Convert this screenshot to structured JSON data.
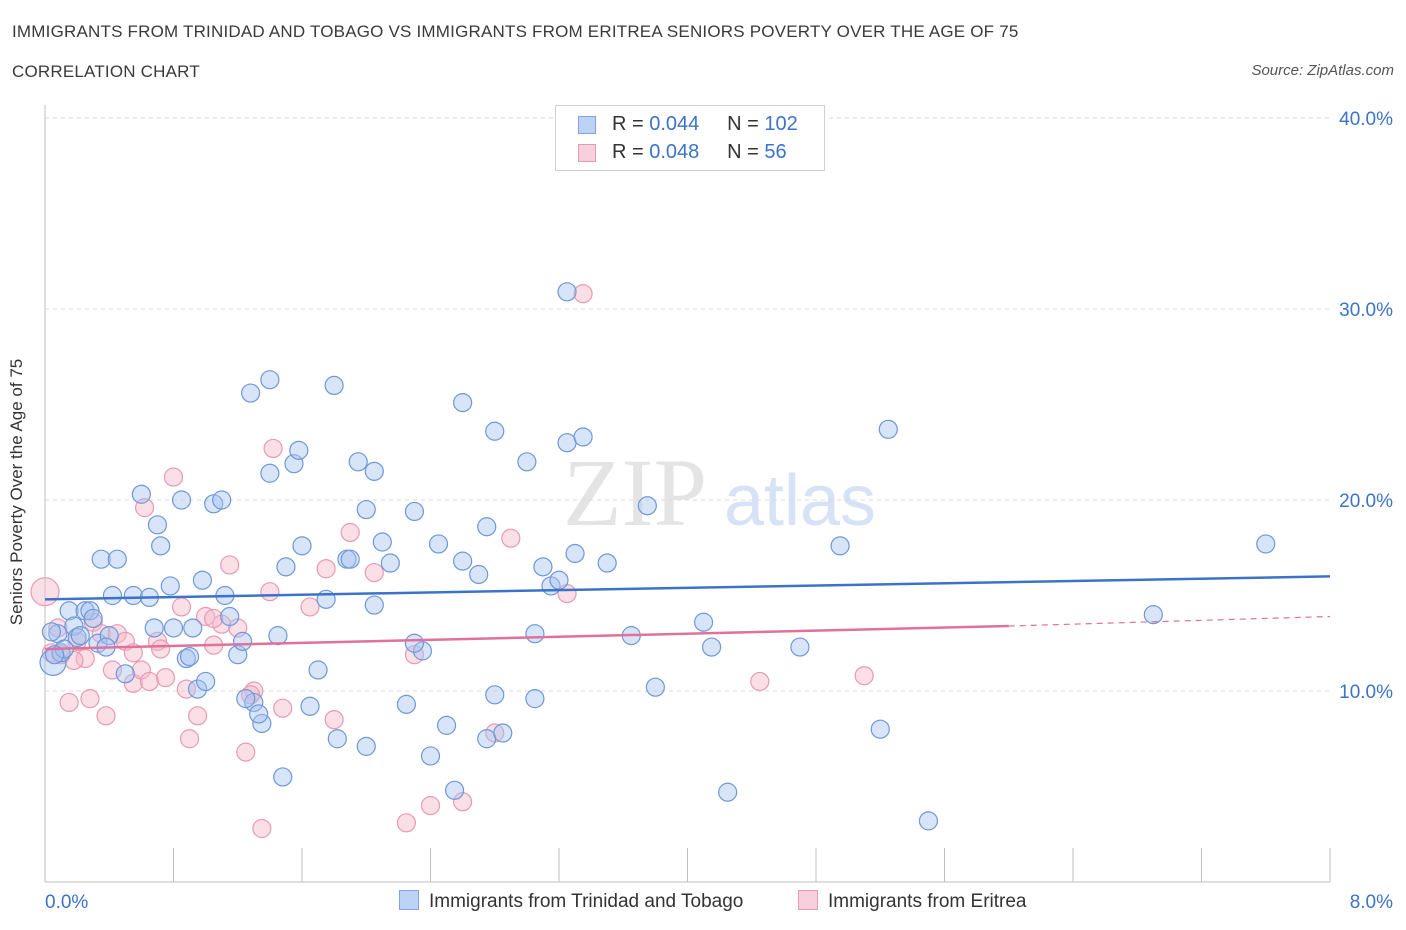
{
  "header": {
    "title": "IMMIGRANTS FROM TRINIDAD AND TOBAGO VS IMMIGRANTS FROM ERITREA SENIORS POVERTY OVER THE AGE OF 75",
    "subtitle": "CORRELATION CHART",
    "source": "Source: ZipAtlas.com"
  },
  "legend": {
    "series1": {
      "r_label": "R = ",
      "r_value": "0.044",
      "n_label": "N = ",
      "n_value": "102"
    },
    "series2": {
      "r_label": "R = ",
      "r_value": "0.048",
      "n_label": "N = ",
      "n_value": "56"
    }
  },
  "watermark": {
    "zip": "ZIP",
    "atlas": "atlas"
  },
  "colors": {
    "blue": "#3b73c9",
    "blue_fill": "#a8c4ef",
    "pink": "#e0719a",
    "pink_fill": "#f4b7c9",
    "grid": "#d9d9d9",
    "tick_label": "#3b73c9"
  },
  "chart_data": {
    "type": "scatter",
    "title": "IMMIGRANTS FROM TRINIDAD AND TOBAGO VS IMMIGRANTS FROM ERITREA SENIORS POVERTY OVER THE AGE OF 75",
    "xlabel": "",
    "ylabel": "Seniors Poverty Over the Age of 75",
    "xlim": [
      0,
      8
    ],
    "ylim": [
      0,
      40
    ],
    "x_tick_labels": [
      "0.0%",
      "8.0%"
    ],
    "y_ticks": [
      10,
      20,
      30,
      40
    ],
    "y_tick_labels": [
      "10.0%",
      "20.0%",
      "30.0%",
      "40.0%"
    ],
    "series": [
      {
        "name": "Immigrants from Trinidad and Tobago",
        "color": "#3b73c9",
        "trend": {
          "x0": 0,
          "y0": 14.8,
          "x1": 8,
          "y1": 16.0
        },
        "points": [
          [
            0.05,
            11.5
          ],
          [
            0.08,
            13.0
          ],
          [
            0.1,
            12.0
          ],
          [
            0.12,
            12.2
          ],
          [
            0.15,
            14.2
          ],
          [
            0.18,
            13.4
          ],
          [
            0.2,
            12.8
          ],
          [
            0.25,
            14.2
          ],
          [
            0.28,
            14.2
          ],
          [
            0.3,
            13.8
          ],
          [
            0.33,
            12.5
          ],
          [
            0.35,
            16.9
          ],
          [
            0.4,
            12.9
          ],
          [
            0.45,
            16.9
          ],
          [
            0.5,
            10.9
          ],
          [
            0.55,
            15.0
          ],
          [
            0.6,
            20.3
          ],
          [
            0.68,
            13.3
          ],
          [
            0.7,
            18.7
          ],
          [
            0.72,
            17.6
          ],
          [
            0.78,
            15.5
          ],
          [
            0.85,
            20.0
          ],
          [
            0.88,
            11.7
          ],
          [
            0.9,
            11.8
          ],
          [
            0.95,
            10.1
          ],
          [
            0.98,
            15.8
          ],
          [
            1.05,
            19.8
          ],
          [
            1.1,
            20.0
          ],
          [
            1.15,
            13.9
          ],
          [
            1.2,
            11.9
          ],
          [
            1.23,
            12.6
          ],
          [
            1.28,
            25.6
          ],
          [
            1.3,
            9.4
          ],
          [
            1.35,
            8.3
          ],
          [
            1.4,
            21.4
          ],
          [
            1.4,
            26.3
          ],
          [
            1.45,
            12.9
          ],
          [
            1.5,
            16.5
          ],
          [
            1.55,
            21.9
          ],
          [
            1.58,
            22.6
          ],
          [
            1.6,
            17.6
          ],
          [
            1.65,
            9.2
          ],
          [
            1.7,
            11.1
          ],
          [
            1.75,
            14.8
          ],
          [
            1.8,
            26.0
          ],
          [
            1.82,
            7.5
          ],
          [
            1.88,
            16.9
          ],
          [
            1.95,
            22.0
          ],
          [
            2.0,
            19.5
          ],
          [
            2.05,
            14.5
          ],
          [
            2.05,
            21.5
          ],
          [
            2.1,
            17.8
          ],
          [
            2.15,
            16.7
          ],
          [
            2.25,
            9.3
          ],
          [
            2.3,
            19.4
          ],
          [
            2.35,
            12.1
          ],
          [
            2.4,
            6.6
          ],
          [
            2.45,
            17.7
          ],
          [
            2.55,
            4.8
          ],
          [
            2.6,
            16.8
          ],
          [
            2.6,
            25.1
          ],
          [
            2.75,
            7.5
          ],
          [
            2.75,
            18.6
          ],
          [
            2.8,
            23.6
          ],
          [
            2.8,
            9.8
          ],
          [
            2.85,
            7.8
          ],
          [
            3.0,
            22.0
          ],
          [
            3.05,
            9.6
          ],
          [
            3.1,
            16.5
          ],
          [
            3.15,
            15.5
          ],
          [
            3.25,
            23.0
          ],
          [
            3.25,
            30.9
          ],
          [
            3.3,
            17.2
          ],
          [
            3.35,
            23.3
          ],
          [
            3.5,
            16.7
          ],
          [
            3.65,
            12.9
          ],
          [
            3.75,
            19.7
          ],
          [
            3.8,
            10.2
          ],
          [
            4.1,
            13.6
          ],
          [
            4.15,
            12.3
          ],
          [
            4.25,
            4.7
          ],
          [
            4.7,
            12.3
          ],
          [
            4.95,
            17.6
          ],
          [
            5.2,
            8.0
          ],
          [
            5.25,
            23.7
          ],
          [
            5.5,
            3.2
          ],
          [
            6.9,
            14.0
          ],
          [
            7.6,
            17.7
          ],
          [
            0.04,
            13.1
          ],
          [
            0.06,
            11.9
          ],
          [
            0.22,
            12.9
          ],
          [
            0.38,
            12.3
          ],
          [
            0.42,
            15.0
          ],
          [
            0.65,
            14.9
          ],
          [
            0.8,
            13.3
          ],
          [
            0.92,
            13.3
          ],
          [
            1.0,
            10.5
          ],
          [
            1.12,
            15.0
          ],
          [
            1.25,
            9.6
          ],
          [
            1.33,
            8.8
          ],
          [
            1.48,
            5.5
          ],
          [
            1.9,
            16.9
          ],
          [
            2.0,
            7.1
          ],
          [
            2.3,
            12.5
          ],
          [
            2.5,
            8.2
          ],
          [
            2.7,
            16.1
          ],
          [
            3.2,
            15.8
          ],
          [
            3.05,
            13.0
          ]
        ]
      },
      {
        "name": "Immigrants from Eritrea",
        "color": "#e0719a",
        "trend": {
          "x0": 0,
          "y0": 12.2,
          "x1": 6.0,
          "y1": 13.4,
          "dash_x1": 8,
          "dash_y1": 13.9
        },
        "points": [
          [
            0.0,
            15.2
          ],
          [
            0.04,
            12.0
          ],
          [
            0.08,
            13.3
          ],
          [
            0.1,
            11.9
          ],
          [
            0.15,
            9.4
          ],
          [
            0.2,
            12.6
          ],
          [
            0.25,
            11.7
          ],
          [
            0.28,
            9.6
          ],
          [
            0.3,
            13.6
          ],
          [
            0.35,
            13.0
          ],
          [
            0.38,
            8.7
          ],
          [
            0.42,
            11.1
          ],
          [
            0.45,
            13.0
          ],
          [
            0.5,
            12.6
          ],
          [
            0.55,
            10.4
          ],
          [
            0.6,
            11.1
          ],
          [
            0.62,
            19.6
          ],
          [
            0.7,
            12.6
          ],
          [
            0.75,
            10.7
          ],
          [
            0.8,
            21.2
          ],
          [
            0.85,
            14.4
          ],
          [
            0.88,
            10.1
          ],
          [
            0.9,
            7.5
          ],
          [
            0.95,
            8.7
          ],
          [
            1.0,
            13.9
          ],
          [
            1.05,
            12.4
          ],
          [
            1.1,
            13.5
          ],
          [
            1.15,
            16.6
          ],
          [
            1.2,
            13.3
          ],
          [
            1.25,
            6.8
          ],
          [
            1.3,
            10.0
          ],
          [
            1.35,
            2.8
          ],
          [
            1.4,
            15.2
          ],
          [
            1.42,
            22.7
          ],
          [
            1.48,
            9.1
          ],
          [
            1.65,
            14.4
          ],
          [
            1.75,
            16.4
          ],
          [
            1.8,
            8.5
          ],
          [
            1.9,
            18.3
          ],
          [
            2.05,
            16.2
          ],
          [
            2.25,
            3.1
          ],
          [
            2.3,
            11.9
          ],
          [
            2.4,
            4.0
          ],
          [
            2.6,
            4.2
          ],
          [
            2.8,
            7.8
          ],
          [
            2.9,
            18.0
          ],
          [
            3.25,
            15.1
          ],
          [
            3.35,
            30.8
          ],
          [
            4.45,
            10.5
          ],
          [
            5.1,
            10.8
          ],
          [
            0.55,
            12.0
          ],
          [
            0.65,
            10.5
          ],
          [
            0.72,
            12.2
          ],
          [
            1.05,
            13.8
          ],
          [
            1.28,
            9.8
          ],
          [
            0.18,
            11.6
          ]
        ]
      }
    ]
  },
  "bottom_legend": {
    "series1": "Immigrants from Trinidad and Tobago",
    "series2": "Immigrants from Eritrea"
  }
}
